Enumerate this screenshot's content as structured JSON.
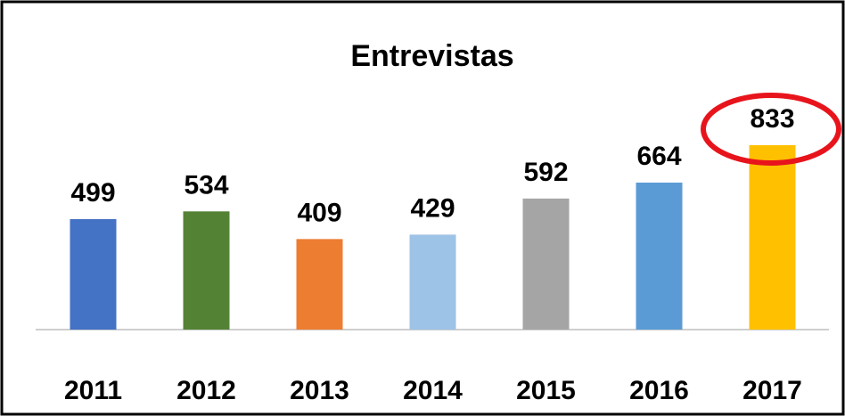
{
  "chart_data": {
    "type": "bar",
    "title": "Entrevistas",
    "categories": [
      "2011",
      "2012",
      "2013",
      "2014",
      "2015",
      "2016",
      "2017"
    ],
    "values": [
      499,
      534,
      409,
      429,
      592,
      664,
      833
    ],
    "colors": [
      "#4472c4",
      "#548235",
      "#ed7d31",
      "#9dc3e6",
      "#a5a5a5",
      "#5b9bd5",
      "#ffc000"
    ]
  }
}
